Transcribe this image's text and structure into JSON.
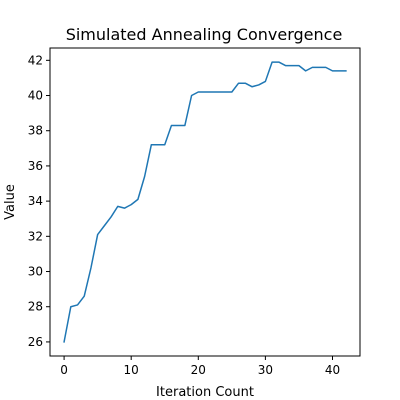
{
  "chart_data": {
    "type": "line",
    "title": "Simulated Annealing Convergence",
    "xlabel": "Iteration Count",
    "ylabel": "Value",
    "xlim": [
      -2.1,
      44.1
    ],
    "ylim": [
      25.2,
      42.7
    ],
    "xticks": [
      0,
      10,
      20,
      30,
      40
    ],
    "yticks": [
      26,
      28,
      30,
      32,
      34,
      36,
      38,
      40,
      42
    ],
    "grid": false,
    "line_color": "#1f77b4",
    "series": [
      {
        "x": [
          0,
          1,
          2,
          3,
          4,
          5,
          6,
          7,
          8,
          9,
          10,
          11,
          12,
          13,
          14,
          15,
          16,
          17,
          18,
          19,
          20,
          21,
          22,
          23,
          24,
          25,
          26,
          27,
          28,
          29,
          30,
          31,
          32,
          33,
          34,
          35,
          36,
          37,
          38,
          39,
          40,
          41,
          42
        ],
        "values": [
          26.0,
          28.0,
          28.1,
          28.6,
          30.2,
          32.1,
          32.6,
          33.1,
          33.7,
          33.6,
          33.8,
          34.1,
          35.4,
          37.2,
          37.2,
          37.2,
          38.3,
          38.3,
          38.3,
          40.0,
          40.2,
          40.2,
          40.2,
          40.2,
          40.2,
          40.2,
          40.7,
          40.7,
          40.5,
          40.6,
          40.8,
          41.9,
          41.9,
          41.7,
          41.7,
          41.7,
          41.4,
          41.6,
          41.6,
          41.6,
          41.4,
          41.4,
          41.4
        ]
      }
    ]
  }
}
